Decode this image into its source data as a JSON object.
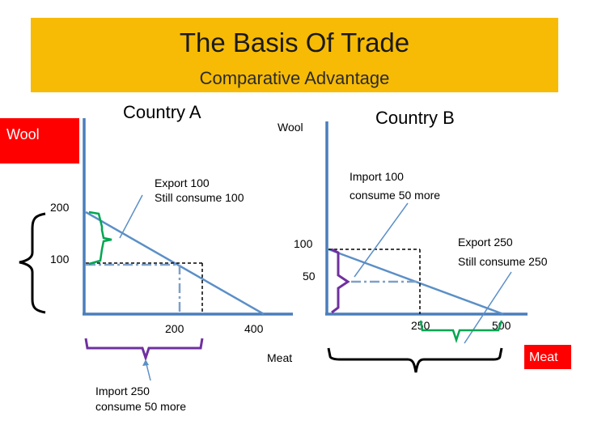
{
  "header": {
    "title": "The Basis Of Trade",
    "subtitle": "Comparative Advantage"
  },
  "colors": {
    "banner": "#f7bb05",
    "red_box": "#ff0000",
    "budget_line": "#5b8fc7",
    "dashdot": "#7fa0c8",
    "green_brace": "#00a651",
    "purple_brace": "#7030a0",
    "axis": "#4a7ebb"
  },
  "country_a": {
    "title": "Country A",
    "y_axis_label": "Wool",
    "y_ticks": [
      "200",
      "100"
    ],
    "x_ticks": [
      "200",
      "400"
    ],
    "export_note": [
      "Export 100",
      "Still consume 100"
    ],
    "import_note": [
      "Import 250",
      "consume 50 more"
    ]
  },
  "country_b": {
    "title": "Country B",
    "y_axis_label": "Wool",
    "y_ticks": [
      "100",
      "50"
    ],
    "x_ticks": [
      "250",
      "500"
    ],
    "x_axis_label": "Meat",
    "import_note": [
      "Import 100",
      "consume 50 more"
    ],
    "export_note": [
      "Export 250",
      "Still consume 250"
    ]
  },
  "shared_x_label": "Meat"
}
